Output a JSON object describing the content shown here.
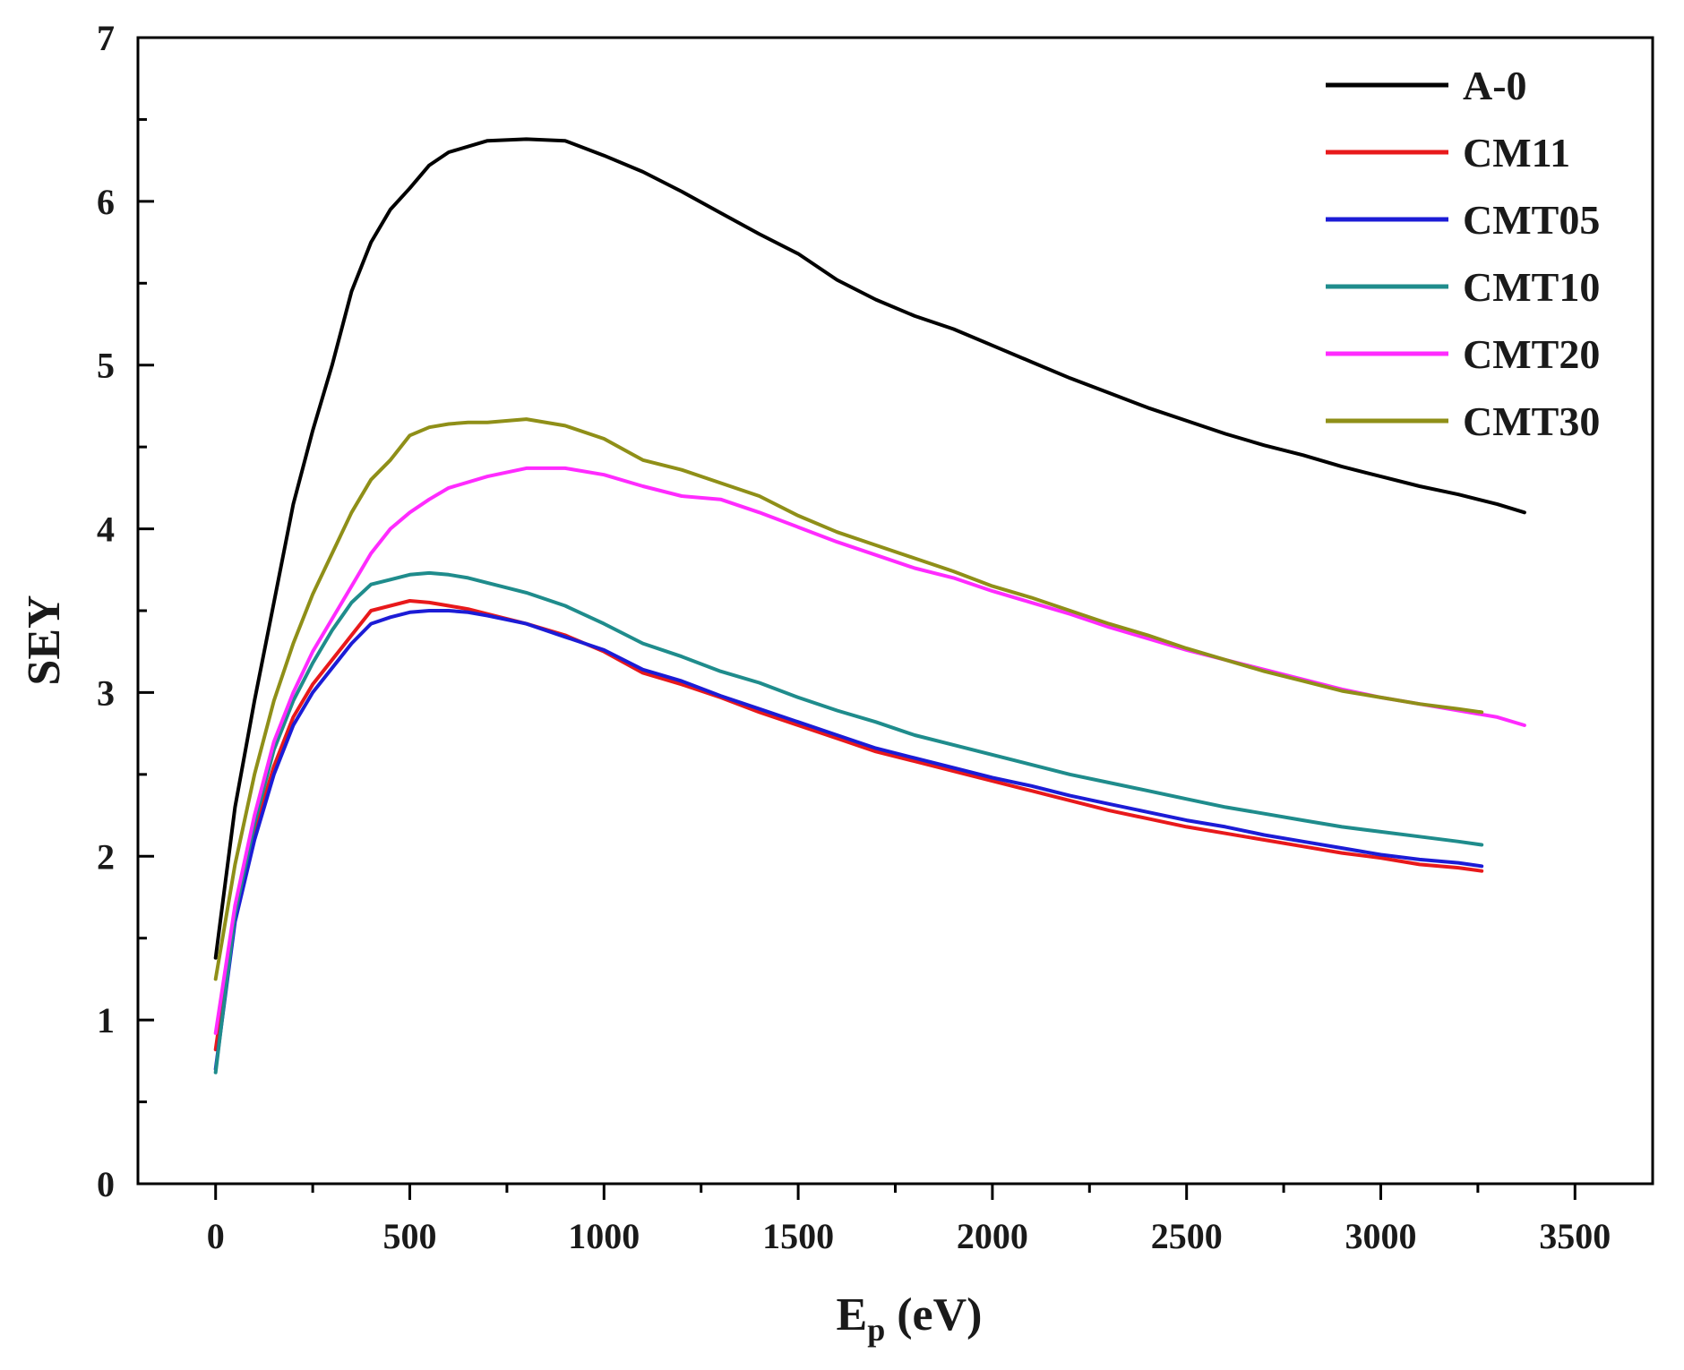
{
  "chart_data": {
    "type": "line",
    "title": "",
    "xlabel": "E",
    "xlabel_sub": "p",
    "xlabel_unit": " (eV)",
    "ylabel": "SEY",
    "xlim": [
      -200,
      3700
    ],
    "ylim": [
      0,
      7
    ],
    "x_ticks": [
      0,
      500,
      1000,
      1500,
      2000,
      2500,
      3000,
      3500
    ],
    "x_tick_labels": [
      "0",
      "500",
      "1000",
      "1500",
      "2000",
      "2500",
      "3000",
      "3500"
    ],
    "y_ticks": [
      0,
      1,
      2,
      3,
      4,
      5,
      6,
      7
    ],
    "y_tick_labels": [
      "0",
      "1",
      "2",
      "3",
      "4",
      "5",
      "6",
      "7"
    ],
    "grid": false,
    "legend_position": "top-right",
    "series": [
      {
        "name": "A-0",
        "color": "#000000",
        "x": [
          0,
          50,
          100,
          150,
          200,
          250,
          300,
          350,
          400,
          450,
          500,
          550,
          600,
          700,
          800,
          900,
          1000,
          1100,
          1200,
          1300,
          1400,
          1500,
          1600,
          1700,
          1800,
          1900,
          2000,
          2100,
          2200,
          2300,
          2400,
          2500,
          2600,
          2700,
          2800,
          2900,
          3000,
          3100,
          3200,
          3300,
          3370
        ],
        "y": [
          1.38,
          2.3,
          2.95,
          3.55,
          4.15,
          4.6,
          5.0,
          5.45,
          5.75,
          5.95,
          6.08,
          6.22,
          6.3,
          6.37,
          6.38,
          6.37,
          6.28,
          6.18,
          6.06,
          5.93,
          5.8,
          5.68,
          5.52,
          5.4,
          5.3,
          5.22,
          5.12,
          5.02,
          4.92,
          4.83,
          4.74,
          4.66,
          4.58,
          4.51,
          4.45,
          4.38,
          4.32,
          4.26,
          4.21,
          4.15,
          4.1
        ]
      },
      {
        "name": "CM11",
        "color": "#e8191b",
        "x": [
          0,
          50,
          100,
          150,
          200,
          250,
          300,
          350,
          400,
          450,
          500,
          550,
          600,
          650,
          700,
          800,
          900,
          1000,
          1100,
          1200,
          1300,
          1400,
          1500,
          1600,
          1700,
          1800,
          1900,
          2000,
          2100,
          2200,
          2300,
          2400,
          2500,
          2600,
          2700,
          2800,
          2900,
          3000,
          3100,
          3200,
          3260
        ],
        "y": [
          0.82,
          1.65,
          2.15,
          2.55,
          2.85,
          3.05,
          3.2,
          3.35,
          3.5,
          3.53,
          3.56,
          3.55,
          3.53,
          3.51,
          3.48,
          3.42,
          3.35,
          3.25,
          3.12,
          3.05,
          2.97,
          2.88,
          2.8,
          2.72,
          2.64,
          2.58,
          2.52,
          2.46,
          2.4,
          2.34,
          2.28,
          2.23,
          2.18,
          2.14,
          2.1,
          2.06,
          2.02,
          1.99,
          1.95,
          1.93,
          1.91
        ]
      },
      {
        "name": "CMT05",
        "color": "#1c1cd6",
        "x": [
          0,
          50,
          100,
          150,
          200,
          250,
          300,
          350,
          400,
          450,
          500,
          550,
          600,
          650,
          700,
          800,
          900,
          1000,
          1100,
          1200,
          1300,
          1400,
          1500,
          1600,
          1700,
          1800,
          1900,
          2000,
          2100,
          2200,
          2300,
          2400,
          2500,
          2600,
          2700,
          2800,
          2900,
          3000,
          3100,
          3200,
          3260
        ],
        "y": [
          0.7,
          1.6,
          2.1,
          2.5,
          2.8,
          3.0,
          3.15,
          3.3,
          3.42,
          3.46,
          3.49,
          3.5,
          3.5,
          3.49,
          3.47,
          3.42,
          3.34,
          3.26,
          3.14,
          3.07,
          2.98,
          2.9,
          2.82,
          2.74,
          2.66,
          2.6,
          2.54,
          2.48,
          2.43,
          2.37,
          2.32,
          2.27,
          2.22,
          2.18,
          2.13,
          2.09,
          2.05,
          2.01,
          1.98,
          1.96,
          1.94
        ]
      },
      {
        "name": "CMT10",
        "color": "#1f8c8c",
        "x": [
          0,
          50,
          100,
          150,
          200,
          250,
          300,
          350,
          400,
          450,
          500,
          550,
          600,
          650,
          700,
          800,
          900,
          1000,
          1100,
          1200,
          1300,
          1400,
          1500,
          1600,
          1700,
          1800,
          1900,
          2000,
          2100,
          2200,
          2300,
          2400,
          2500,
          2600,
          2700,
          2800,
          2900,
          3000,
          3100,
          3200,
          3260
        ],
        "y": [
          0.68,
          1.65,
          2.2,
          2.65,
          2.95,
          3.18,
          3.38,
          3.55,
          3.66,
          3.69,
          3.72,
          3.73,
          3.72,
          3.7,
          3.67,
          3.61,
          3.53,
          3.42,
          3.3,
          3.22,
          3.13,
          3.06,
          2.97,
          2.89,
          2.82,
          2.74,
          2.68,
          2.62,
          2.56,
          2.5,
          2.45,
          2.4,
          2.35,
          2.3,
          2.26,
          2.22,
          2.18,
          2.15,
          2.12,
          2.09,
          2.07
        ]
      },
      {
        "name": "CMT20",
        "color": "#ff2bff",
        "x": [
          0,
          50,
          100,
          150,
          200,
          250,
          300,
          350,
          400,
          450,
          500,
          550,
          600,
          700,
          800,
          900,
          1000,
          1100,
          1200,
          1300,
          1400,
          1500,
          1600,
          1700,
          1800,
          1900,
          2000,
          2100,
          2200,
          2300,
          2400,
          2500,
          2600,
          2700,
          2800,
          2900,
          3000,
          3100,
          3200,
          3300,
          3370
        ],
        "y": [
          0.92,
          1.7,
          2.25,
          2.7,
          3.0,
          3.25,
          3.45,
          3.65,
          3.85,
          4.0,
          4.1,
          4.18,
          4.25,
          4.32,
          4.37,
          4.37,
          4.33,
          4.26,
          4.2,
          4.18,
          4.1,
          4.01,
          3.92,
          3.84,
          3.76,
          3.7,
          3.62,
          3.55,
          3.48,
          3.4,
          3.33,
          3.26,
          3.2,
          3.14,
          3.08,
          3.02,
          2.97,
          2.93,
          2.89,
          2.85,
          2.8
        ]
      },
      {
        "name": "CMT30",
        "color": "#8f8f18",
        "x": [
          0,
          50,
          100,
          150,
          200,
          250,
          300,
          350,
          400,
          450,
          500,
          550,
          600,
          650,
          700,
          800,
          900,
          1000,
          1100,
          1200,
          1300,
          1400,
          1500,
          1600,
          1700,
          1800,
          1900,
          2000,
          2100,
          2200,
          2300,
          2400,
          2500,
          2600,
          2700,
          2800,
          2900,
          3000,
          3100,
          3200,
          3260
        ],
        "y": [
          1.25,
          1.95,
          2.5,
          2.95,
          3.3,
          3.6,
          3.85,
          4.1,
          4.3,
          4.42,
          4.57,
          4.62,
          4.64,
          4.65,
          4.65,
          4.67,
          4.63,
          4.55,
          4.42,
          4.36,
          4.28,
          4.2,
          4.08,
          3.98,
          3.9,
          3.82,
          3.74,
          3.65,
          3.58,
          3.5,
          3.42,
          3.35,
          3.27,
          3.2,
          3.13,
          3.07,
          3.01,
          2.97,
          2.93,
          2.9,
          2.88
        ]
      }
    ]
  }
}
